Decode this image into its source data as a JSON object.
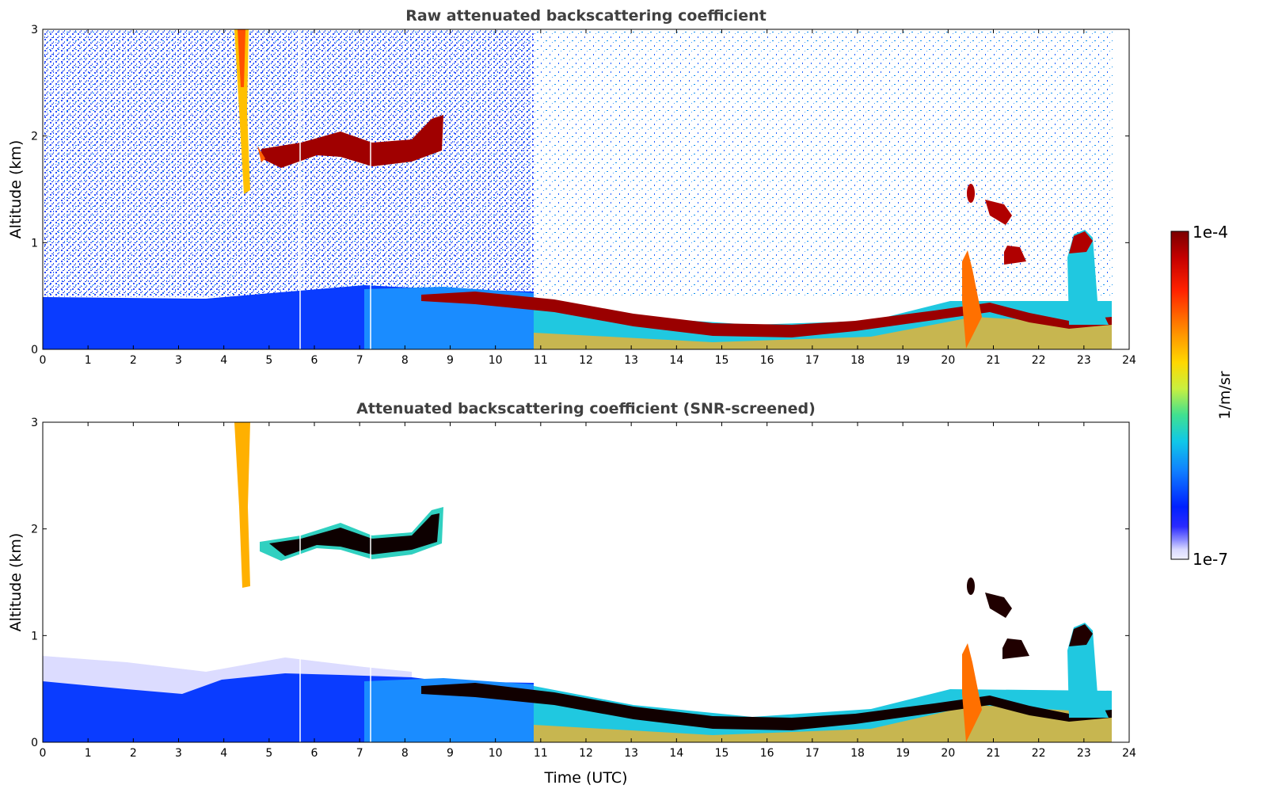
{
  "chart_data": [
    {
      "type": "heatmap",
      "title": "Raw attenuated backscattering coefficient",
      "xlabel": "",
      "ylabel": "Altitude (km)",
      "xlim": [
        0,
        24
      ],
      "ylim": [
        0,
        3
      ],
      "xticks": [
        0,
        1,
        2,
        3,
        4,
        5,
        6,
        7,
        8,
        9,
        10,
        11,
        12,
        13,
        14,
        15,
        16,
        17,
        18,
        19,
        20,
        21,
        22,
        23,
        24
      ],
      "yticks": [
        0,
        1,
        2,
        3
      ],
      "data_end_time": 23.65,
      "features": [
        {
          "name": "boundary-layer",
          "time_range": [
            0,
            23.65
          ],
          "altitude_km": [
            0,
            0.6
          ]
        },
        {
          "name": "cloud-layer-2km",
          "time_range": [
            4.9,
            9.0
          ],
          "altitude_km": [
            1.7,
            2.1
          ]
        },
        {
          "name": "descending-aerosol-top",
          "time_range": [
            8.4,
            23.6
          ],
          "altitude_km": [
            0.15,
            0.5
          ]
        },
        {
          "name": "fall-streak",
          "time_range": [
            4.2,
            4.6
          ],
          "altitude_km": [
            1.5,
            3.0
          ]
        },
        {
          "name": "evening-clouds",
          "time_range": [
            20.4,
            23.3
          ],
          "altitude_km": [
            0.3,
            1.5
          ]
        }
      ]
    },
    {
      "type": "heatmap",
      "title": "Attenuated backscattering coefficient (SNR-screened)",
      "xlabel": "Time (UTC)",
      "ylabel": "Altitude (km)",
      "xlim": [
        0,
        24
      ],
      "ylim": [
        0,
        3
      ],
      "xticks": [
        0,
        1,
        2,
        3,
        4,
        5,
        6,
        7,
        8,
        9,
        10,
        11,
        12,
        13,
        14,
        15,
        16,
        17,
        18,
        19,
        20,
        21,
        22,
        23,
        24
      ],
      "yticks": [
        0,
        1,
        2,
        3
      ],
      "data_end_time": 23.65
    }
  ],
  "colorbar": {
    "label": "1/m/sr",
    "max_label": "1e-4",
    "min_label": "1e-7",
    "colors": [
      "#7a0000",
      "#c40000",
      "#ff2200",
      "#ff8a00",
      "#ffd800",
      "#c8f040",
      "#40e090",
      "#10c8e8",
      "#1080ff",
      "#0020ff",
      "#2a2aff",
      "#8888ff",
      "#d8d8ff",
      "#f0f0ff"
    ]
  }
}
